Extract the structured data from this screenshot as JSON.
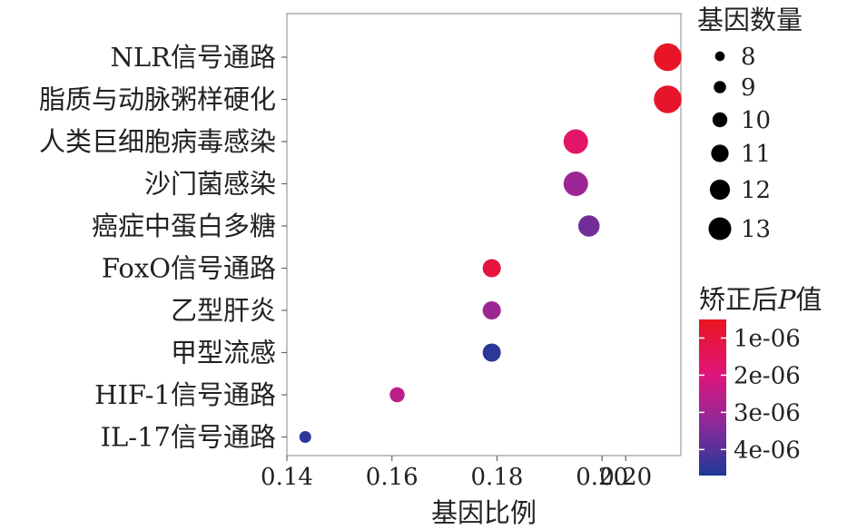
{
  "chart_data": {
    "type": "scatter",
    "title": "",
    "xlabel": "基因比例",
    "ylabel": "",
    "xlim": [
      0.14,
      0.215
    ],
    "x_ticks": [
      {
        "value": 0.14,
        "label": "0.14"
      },
      {
        "value": 0.16,
        "label": "0.16"
      },
      {
        "value": 0.18,
        "label": "0.18"
      },
      {
        "value": 0.2,
        "label": "0.20"
      },
      {
        "value": 0.2045,
        "label": "0.20"
      }
    ],
    "grid": false,
    "points": [
      {
        "term": "NLR信号通路",
        "gene_ratio": 0.2125,
        "count": 13,
        "p_adj": 6e-07
      },
      {
        "term": "脂质与动脉粥样硬化",
        "gene_ratio": 0.2125,
        "count": 13,
        "p_adj": 7e-07
      },
      {
        "term": "人类巨细胞病毒感染",
        "gene_ratio": 0.195,
        "count": 12,
        "p_adj": 1.6e-06
      },
      {
        "term": "沙门菌感染",
        "gene_ratio": 0.195,
        "count": 12,
        "p_adj": 3e-06
      },
      {
        "term": "癌症中蛋白多糖",
        "gene_ratio": 0.1975,
        "count": 11,
        "p_adj": 3.6e-06
      },
      {
        "term": "FoxO信号通路",
        "gene_ratio": 0.179,
        "count": 10,
        "p_adj": 1e-06
      },
      {
        "term": "乙型肝炎",
        "gene_ratio": 0.179,
        "count": 10,
        "p_adj": 3e-06
      },
      {
        "term": "甲型流感",
        "gene_ratio": 0.179,
        "count": 10,
        "p_adj": 4.5e-06
      },
      {
        "term": "HIF-1信号通路",
        "gene_ratio": 0.161,
        "count": 9,
        "p_adj": 2.5e-06
      },
      {
        "term": "IL-17信号通路",
        "gene_ratio": 0.1435,
        "count": 8,
        "p_adj": 4.5e-06
      }
    ],
    "size_legend": {
      "title": "基因数量",
      "entries": [
        {
          "label": "8",
          "count": 8
        },
        {
          "label": "9",
          "count": 9
        },
        {
          "label": "10",
          "count": 10
        },
        {
          "label": "11",
          "count": 11
        },
        {
          "label": "12",
          "count": 12
        },
        {
          "label": "13",
          "count": 13
        }
      ]
    },
    "color_legend": {
      "title_prefix": "矫正后",
      "title_var": "P",
      "title_suffix": "值",
      "range": [
        5e-07,
        4.7e-06
      ],
      "ticks": [
        {
          "value": 1e-06,
          "label": "1e-06"
        },
        {
          "value": 2e-06,
          "label": "2e-06"
        },
        {
          "value": 3e-06,
          "label": "3e-06"
        },
        {
          "value": 4e-06,
          "label": "4e-06"
        }
      ],
      "colors": [
        "#e8151f",
        "#e0157a",
        "#8a2a9a",
        "#1c3a96"
      ]
    }
  }
}
